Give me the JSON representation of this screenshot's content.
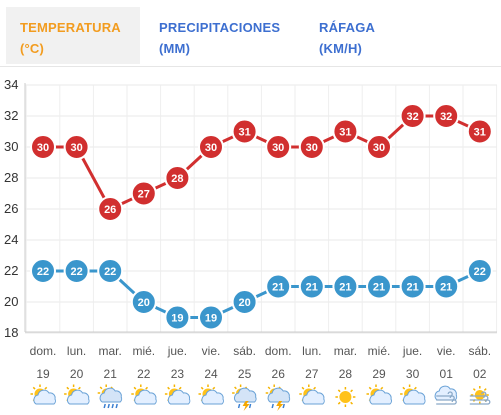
{
  "tabs": [
    {
      "line1": "TEMPERATURA",
      "line2": "(°C)"
    },
    {
      "line1": "PRECIPITACIONES",
      "line2": "(MM)"
    },
    {
      "line1": "RÁFAGA",
      "line2": "(KM/H)"
    }
  ],
  "colors": {
    "active_tab": "#f29c1f",
    "inactive_tab": "#3d6fd0",
    "max_series": "#d12f2f",
    "min_series": "#3a96cc"
  },
  "chart_data": {
    "type": "line",
    "yticks": [
      18,
      20,
      22,
      24,
      26,
      28,
      30,
      32,
      34
    ],
    "ylim": [
      18,
      34
    ],
    "grid": true,
    "categories": [
      {
        "day": "dom.",
        "date": "19"
      },
      {
        "day": "lun.",
        "date": "20"
      },
      {
        "day": "mar.",
        "date": "21"
      },
      {
        "day": "mié.",
        "date": "22"
      },
      {
        "day": "jue.",
        "date": "23"
      },
      {
        "day": "vie.",
        "date": "24"
      },
      {
        "day": "sáb.",
        "date": "25"
      },
      {
        "day": "dom.",
        "date": "26"
      },
      {
        "day": "lun.",
        "date": "27"
      },
      {
        "day": "mar.",
        "date": "28"
      },
      {
        "day": "mié.",
        "date": "29"
      },
      {
        "day": "jue.",
        "date": "30"
      },
      {
        "day": "vie.",
        "date": "01"
      },
      {
        "day": "sáb.",
        "date": "02"
      }
    ],
    "series": [
      {
        "key": "max",
        "values": [
          30,
          30,
          26,
          27,
          28,
          30,
          31,
          30,
          30,
          31,
          30,
          32,
          32,
          31
        ]
      },
      {
        "key": "min",
        "values": [
          22,
          22,
          22,
          20,
          19,
          19,
          20,
          21,
          21,
          21,
          21,
          21,
          21,
          22
        ]
      }
    ],
    "weather_icons": [
      "partly-sunny-icon",
      "partly-sunny-icon",
      "rain-icon",
      "partly-sunny-icon",
      "partly-sunny-icon",
      "partly-sunny-icon",
      "thunderstorm-icon",
      "thunderstorm-icon",
      "partly-sunny-icon",
      "sunny-icon",
      "partly-sunny-icon",
      "partly-sunny-icon",
      "windy-icon",
      "windy-sun-icon"
    ]
  }
}
